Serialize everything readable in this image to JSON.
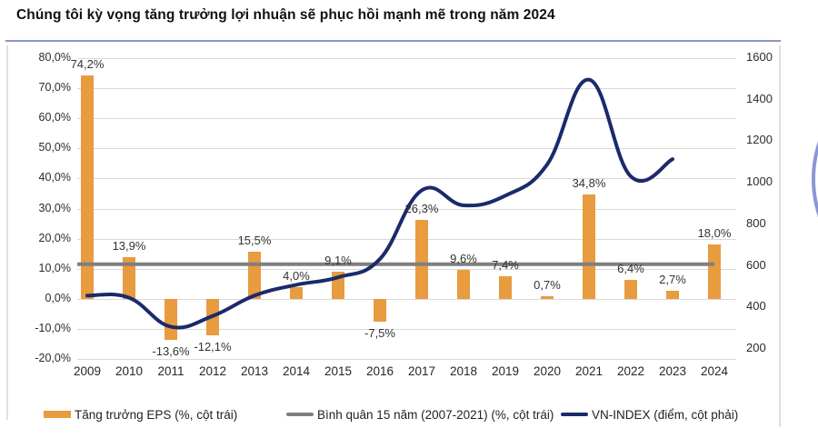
{
  "page": {
    "title": "Chúng tôi kỳ vọng tăng trưởng lợi nhuận sẽ phục hồi mạnh mẽ trong năm 2024"
  },
  "colors": {
    "bar": "#E89B3F",
    "average_line": "#7F7F7F",
    "vnindex_line": "#1B2A6B",
    "grid": "#D9D9D9",
    "divider": "#8A94C8",
    "accent_arc": "#8C96D4"
  },
  "chart_data": {
    "type": "combo",
    "title": "Chúng tôi kỳ vọng tăng trưởng lợi nhuận sẽ phục hồi mạnh mẽ trong năm 2024",
    "categories": [
      "2009",
      "2010",
      "2011",
      "2012",
      "2013",
      "2014",
      "2015",
      "2016",
      "2017",
      "2018",
      "2019",
      "2020",
      "2021",
      "2022",
      "2023",
      "2024"
    ],
    "left_axis": {
      "unit": "%",
      "min": -20,
      "max": 80,
      "ticks": [
        "80,0%",
        "70,0%",
        "60,0%",
        "50,0%",
        "40,0%",
        "30,0%",
        "20,0%",
        "10,0%",
        "0,0%",
        "-10,0%",
        "-20,0%"
      ]
    },
    "right_axis": {
      "min": 200,
      "max": 1600,
      "ticks": [
        "1600",
        "1400",
        "1200",
        "1000",
        "800",
        "600",
        "400",
        "200"
      ]
    },
    "grid": true,
    "legend_position": "bottom",
    "series": [
      {
        "name": "Tăng trưởng EPS (%, cột trái)",
        "type": "bar",
        "axis": "left",
        "values": [
          74.2,
          13.9,
          -13.6,
          -12.1,
          15.5,
          4.0,
          9.1,
          -7.5,
          26.3,
          9.6,
          7.4,
          0.7,
          34.8,
          6.4,
          2.7,
          18.0
        ],
        "data_labels": [
          "74,2%",
          "13,9%",
          "-13,6%",
          "-12,1%",
          "15,5%",
          "4,0%",
          "9,1%",
          "-7,5%",
          "26,3%",
          "9,6%",
          "7,4%",
          "0,7%",
          "34,8%",
          "6,4%",
          "2,7%",
          "18,0%"
        ]
      },
      {
        "name": "Bình quân 15 năm (2007-2021) (%, cột trái)",
        "type": "line",
        "axis": "left",
        "constant_value": 11.5
      },
      {
        "name": "VN-INDEX (điểm, cột phải)",
        "type": "line",
        "axis": "right",
        "x": [
          "2009",
          "2010",
          "2011",
          "2012",
          "2013",
          "2014",
          "2015",
          "2016",
          "2017",
          "2018",
          "2019",
          "2020",
          "2021",
          "2022",
          "2023"
        ],
        "values": [
          495,
          485,
          350,
          400,
          495,
          545,
          580,
          665,
          985,
          915,
          960,
          1105,
          1500,
          1050,
          1130
        ]
      }
    ]
  }
}
